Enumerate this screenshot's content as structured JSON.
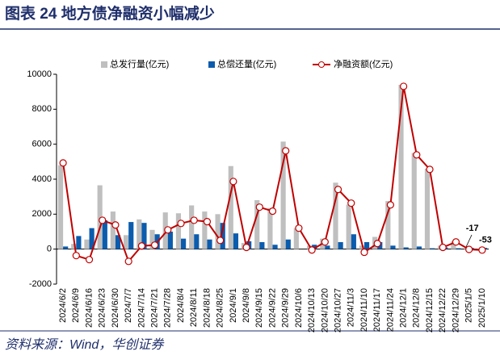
{
  "chart_data": {
    "type": "bar-line",
    "title": "图表 24   地方债净融资小幅减少",
    "source": "资料来源：Wind，华创证券",
    "categories": [
      "2024/6/2",
      "2024/6/9",
      "2024/6/16",
      "2024/6/23",
      "2024/6/30",
      "2024/7/7",
      "2024/7/14",
      "2024/7/21",
      "2024/7/28",
      "2024/8/4",
      "2024/8/11",
      "2024/8/18",
      "2024/8/25",
      "2024/9/1",
      "2024/9/8",
      "2024/9/15",
      "2024/9/22",
      "2024/9/29",
      "2024/10/6",
      "2024/10/13",
      "2024/10/20",
      "2024/10/27",
      "2024/11/3",
      "2024/11/10",
      "2024/11/17",
      "2024/11/24",
      "2024/12/1",
      "2024/12/8",
      "2024/12/15",
      "2024/12/22",
      "2024/12/29",
      "2025/1/5",
      "2025/1/10"
    ],
    "series": [
      {
        "name": "总发行量(亿元)",
        "kind": "bar",
        "color": "#bfbfbf",
        "values": [
          4800,
          300,
          550,
          3650,
          2150,
          800,
          1700,
          1100,
          2100,
          2050,
          2500,
          2150,
          2000,
          4750,
          350,
          2800,
          2350,
          6150,
          1200,
          200,
          600,
          3800,
          2550,
          200,
          700,
          2750,
          9400,
          5500,
          4600,
          200,
          450,
          50,
          20
        ]
      },
      {
        "name": "总偿还量(亿元)",
        "kind": "bar",
        "color": "#0b5cad",
        "values": [
          150,
          750,
          1200,
          1650,
          800,
          1550,
          1500,
          850,
          1000,
          600,
          850,
          550,
          1500,
          900,
          450,
          400,
          250,
          550,
          0,
          250,
          200,
          400,
          850,
          400,
          400,
          200,
          100,
          150,
          50,
          100,
          50,
          70,
          70
        ]
      },
      {
        "name": "净融资额(亿元)",
        "kind": "line",
        "color": "#c00000",
        "values": [
          4930,
          -370,
          -600,
          1650,
          1380,
          -700,
          180,
          230,
          1100,
          1470,
          1650,
          1570,
          500,
          3870,
          100,
          2400,
          2170,
          5620,
          1200,
          -50,
          410,
          3410,
          2630,
          -180,
          320,
          2530,
          9310,
          5390,
          4560,
          100,
          410,
          -17,
          -53
        ],
        "value_labels": [
          null,
          null,
          null,
          null,
          null,
          null,
          null,
          null,
          null,
          null,
          null,
          null,
          null,
          null,
          null,
          null,
          null,
          null,
          null,
          null,
          null,
          null,
          null,
          null,
          null,
          null,
          null,
          null,
          null,
          null,
          null,
          "-17",
          "-53"
        ]
      }
    ],
    "ylim": [
      -2000,
      10000
    ],
    "yticks": [
      -2000,
      0,
      2000,
      4000,
      6000,
      8000,
      10000
    ],
    "grid": false
  }
}
